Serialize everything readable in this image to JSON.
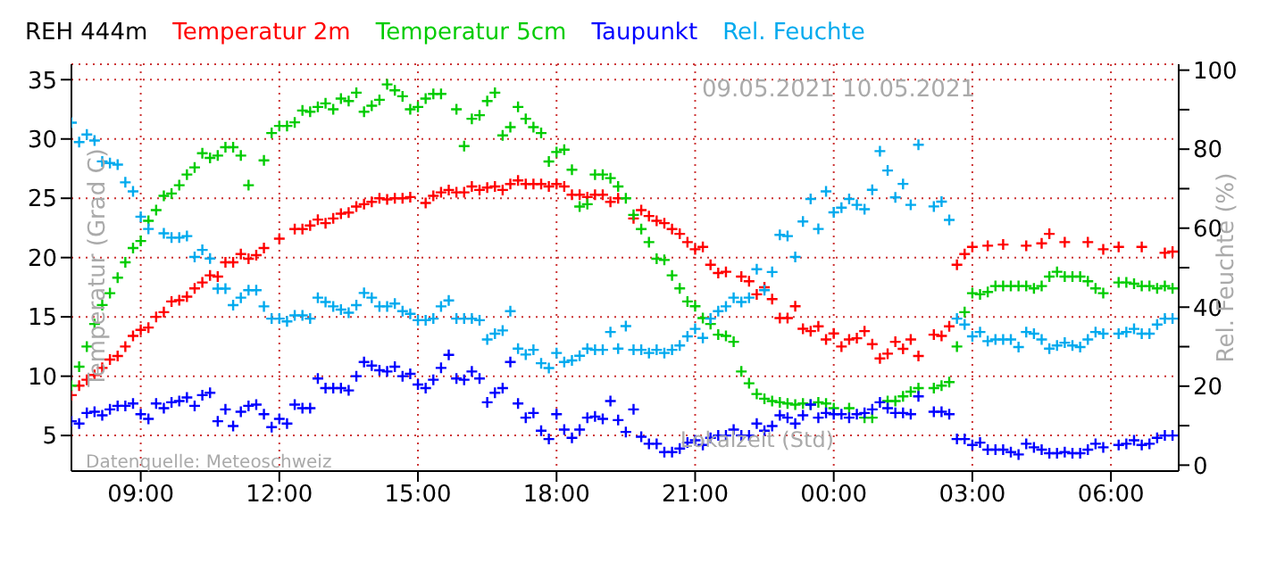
{
  "chart_data": {
    "type": "scatter",
    "title": "REH 444m",
    "ylabel": "Temperatur (Grad C)",
    "y2label": "Rel. Feuchte (%)",
    "xlabel": "Lokalzeit (Std)",
    "annotations": [
      "09.05.2021 10.05.2021",
      "Datenquelle: Meteoschweiz"
    ],
    "xlim": [
      "2021-05-09T07:30",
      "2021-05-10T07:28"
    ],
    "xticks": [
      {
        "value": "2021-05-09T09:00",
        "label": "09:00"
      },
      {
        "value": "2021-05-09T12:00",
        "label": "12:00"
      },
      {
        "value": "2021-05-09T15:00",
        "label": "15:00"
      },
      {
        "value": "2021-05-09T18:00",
        "label": "18:00"
      },
      {
        "value": "2021-05-09T21:00",
        "label": "21:00"
      },
      {
        "value": "2021-05-10T00:00",
        "label": "00:00"
      },
      {
        "value": "2021-05-10T03:00",
        "label": "03:00"
      },
      {
        "value": "2021-05-10T06:00",
        "label": "06:00"
      }
    ],
    "ylim": [
      2,
      36.3
    ],
    "yticks": [
      5,
      10,
      15,
      20,
      25,
      30,
      35
    ],
    "y2lim": [
      -1.5,
      101.5
    ],
    "y2ticks": [
      0,
      {
        "value": 10,
        "label": null
      },
      20,
      {
        "value": 30,
        "label": null
      },
      40,
      {
        "value": 50,
        "label": null
      },
      60,
      {
        "value": 70,
        "label": null
      },
      80,
      {
        "value": 90,
        "label": null
      },
      100
    ],
    "grid": true,
    "legend": "top",
    "marker": "cross",
    "series": [
      {
        "name": "Temperatur 2m",
        "color": "#ff0000",
        "x": [
          "2021-05-09T07:30",
          "2021-05-09T07:40",
          "2021-05-09T07:50",
          "2021-05-09T08:00",
          "2021-05-09T08:10",
          "2021-05-09T08:20",
          "2021-05-09T08:30",
          "2021-05-09T08:40",
          "2021-05-09T08:50",
          "2021-05-09T09:00",
          "2021-05-09T09:10",
          "2021-05-09T09:20",
          "2021-05-09T09:30",
          "2021-05-09T09:40",
          "2021-05-09T09:50",
          "2021-05-09T10:00",
          "2021-05-09T10:10",
          "2021-05-09T10:20",
          "2021-05-09T10:30",
          "2021-05-09T10:40",
          "2021-05-09T10:50",
          "2021-05-09T11:00",
          "2021-05-09T11:10",
          "2021-05-09T11:20",
          "2021-05-09T11:30",
          "2021-05-09T11:40",
          "2021-05-09T12:00",
          "2021-05-09T12:20",
          "2021-05-09T12:30",
          "2021-05-09T12:40",
          "2021-05-09T12:50",
          "2021-05-09T13:00",
          "2021-05-09T13:10",
          "2021-05-09T13:20",
          "2021-05-09T13:30",
          "2021-05-09T13:40",
          "2021-05-09T13:50",
          "2021-05-09T14:00",
          "2021-05-09T14:10",
          "2021-05-09T14:20",
          "2021-05-09T14:30",
          "2021-05-09T14:40",
          "2021-05-09T14:50",
          "2021-05-09T15:10",
          "2021-05-09T15:20",
          "2021-05-09T15:30",
          "2021-05-09T15:40",
          "2021-05-09T15:50",
          "2021-05-09T16:00",
          "2021-05-09T16:10",
          "2021-05-09T16:20",
          "2021-05-09T16:30",
          "2021-05-09T16:40",
          "2021-05-09T16:50",
          "2021-05-09T17:00",
          "2021-05-09T17:10",
          "2021-05-09T17:20",
          "2021-05-09T17:30",
          "2021-05-09T17:40",
          "2021-05-09T17:50",
          "2021-05-09T18:00",
          "2021-05-09T18:10",
          "2021-05-09T18:20",
          "2021-05-09T18:30",
          "2021-05-09T18:40",
          "2021-05-09T18:50",
          "2021-05-09T19:00",
          "2021-05-09T19:10",
          "2021-05-09T19:20",
          "2021-05-09T19:40",
          "2021-05-09T19:50",
          "2021-05-09T20:00",
          "2021-05-09T20:10",
          "2021-05-09T20:20",
          "2021-05-09T20:30",
          "2021-05-09T20:40",
          "2021-05-09T20:50",
          "2021-05-09T21:00",
          "2021-05-09T21:10",
          "2021-05-09T21:20",
          "2021-05-09T21:30",
          "2021-05-09T21:40",
          "2021-05-09T22:00",
          "2021-05-09T22:10",
          "2021-05-09T22:20",
          "2021-05-09T22:30",
          "2021-05-09T22:40",
          "2021-05-09T22:50",
          "2021-05-09T23:00",
          "2021-05-09T23:10",
          "2021-05-09T23:20",
          "2021-05-09T23:30",
          "2021-05-09T23:40",
          "2021-05-09T23:50",
          "2021-05-10T00:00",
          "2021-05-10T00:10",
          "2021-05-10T00:20",
          "2021-05-10T00:30",
          "2021-05-10T00:40",
          "2021-05-10T00:50",
          "2021-05-10T01:00",
          "2021-05-10T01:10",
          "2021-05-10T01:20",
          "2021-05-10T01:30",
          "2021-05-10T01:40",
          "2021-05-10T01:50",
          "2021-05-10T02:10",
          "2021-05-10T02:20",
          "2021-05-10T02:30",
          "2021-05-10T02:40",
          "2021-05-10T02:50",
          "2021-05-10T03:00",
          "2021-05-10T03:20",
          "2021-05-10T03:40",
          "2021-05-10T04:10",
          "2021-05-10T04:30",
          "2021-05-10T04:40",
          "2021-05-10T05:00",
          "2021-05-10T05:30",
          "2021-05-10T05:50",
          "2021-05-10T06:10",
          "2021-05-10T06:40",
          "2021-05-10T07:10",
          "2021-05-10T07:20"
        ],
        "values": [
          8.4,
          9.2,
          9.7,
          10.1,
          10.7,
          11.4,
          11.7,
          12.5,
          13.4,
          13.9,
          14.1,
          15.0,
          15.4,
          16.3,
          16.4,
          16.7,
          17.4,
          17.9,
          18.5,
          18.4,
          19.6,
          19.6,
          20.3,
          19.9,
          20.2,
          20.8,
          21.6,
          22.4,
          22.4,
          22.7,
          23.2,
          22.9,
          23.3,
          23.7,
          23.8,
          24.3,
          24.5,
          24.7,
          25.0,
          24.9,
          25.0,
          25.0,
          25.1,
          24.6,
          25.2,
          25.5,
          25.7,
          25.5,
          25.5,
          26.0,
          25.7,
          25.9,
          26.0,
          25.7,
          26.2,
          26.5,
          26.2,
          26.2,
          26.2,
          26.0,
          26.2,
          26.0,
          25.3,
          25.3,
          25.1,
          25.3,
          25.3,
          24.7,
          25.0,
          23.3,
          24.0,
          23.5,
          23.1,
          22.9,
          22.4,
          22.0,
          21.3,
          20.7,
          20.9,
          19.4,
          18.7,
          18.8,
          18.4,
          18.0,
          16.9,
          17.5,
          16.5,
          14.9,
          14.9,
          15.9,
          14.0,
          13.8,
          14.2,
          13.1,
          13.6,
          12.5,
          13.1,
          13.2,
          13.8,
          12.7,
          11.5,
          11.9,
          12.9,
          12.3,
          13.1,
          11.7,
          13.5,
          13.4,
          14.2,
          19.4,
          20.3,
          20.9,
          21.0,
          21.1,
          21.0,
          21.2,
          22.0,
          21.3,
          21.3,
          20.7,
          20.9,
          20.9,
          20.4,
          20.5
        ]
      },
      {
        "name": "Temperatur 5cm",
        "color": "#00cc00",
        "x": [
          "2021-05-09T07:30",
          "2021-05-09T07:40",
          "2021-05-09T07:50",
          "2021-05-09T08:00",
          "2021-05-09T08:10",
          "2021-05-09T08:20",
          "2021-05-09T08:30",
          "2021-05-09T08:40",
          "2021-05-09T08:50",
          "2021-05-09T09:00",
          "2021-05-09T09:10",
          "2021-05-09T09:20",
          "2021-05-09T09:30",
          "2021-05-09T09:40",
          "2021-05-09T09:50",
          "2021-05-09T10:00",
          "2021-05-09T10:10",
          "2021-05-09T10:20",
          "2021-05-09T10:30",
          "2021-05-09T10:40",
          "2021-05-09T10:50",
          "2021-05-09T11:00",
          "2021-05-09T11:10",
          "2021-05-09T11:20",
          "2021-05-09T11:40",
          "2021-05-09T11:50",
          "2021-05-09T12:00",
          "2021-05-09T12:10",
          "2021-05-09T12:20",
          "2021-05-09T12:30",
          "2021-05-09T12:40",
          "2021-05-09T12:50",
          "2021-05-09T13:00",
          "2021-05-09T13:10",
          "2021-05-09T13:20",
          "2021-05-09T13:30",
          "2021-05-09T13:40",
          "2021-05-09T13:50",
          "2021-05-09T14:00",
          "2021-05-09T14:10",
          "2021-05-09T14:20",
          "2021-05-09T14:30",
          "2021-05-09T14:40",
          "2021-05-09T14:50",
          "2021-05-09T15:00",
          "2021-05-09T15:10",
          "2021-05-09T15:20",
          "2021-05-09T15:30",
          "2021-05-09T15:50",
          "2021-05-09T16:00",
          "2021-05-09T16:10",
          "2021-05-09T16:20",
          "2021-05-09T16:30",
          "2021-05-09T16:40",
          "2021-05-09T16:50",
          "2021-05-09T17:00",
          "2021-05-09T17:10",
          "2021-05-09T17:20",
          "2021-05-09T17:30",
          "2021-05-09T17:40",
          "2021-05-09T17:50",
          "2021-05-09T18:00",
          "2021-05-09T18:10",
          "2021-05-09T18:20",
          "2021-05-09T18:30",
          "2021-05-09T18:40",
          "2021-05-09T18:50",
          "2021-05-09T19:00",
          "2021-05-09T19:10",
          "2021-05-09T19:20",
          "2021-05-09T19:30",
          "2021-05-09T19:40",
          "2021-05-09T19:50",
          "2021-05-09T20:00",
          "2021-05-09T20:10",
          "2021-05-09T20:20",
          "2021-05-09T20:30",
          "2021-05-09T20:40",
          "2021-05-09T20:50",
          "2021-05-09T21:00",
          "2021-05-09T21:10",
          "2021-05-09T21:20",
          "2021-05-09T21:30",
          "2021-05-09T21:40",
          "2021-05-09T21:50",
          "2021-05-09T22:00",
          "2021-05-09T22:10",
          "2021-05-09T22:20",
          "2021-05-09T22:30",
          "2021-05-09T22:40",
          "2021-05-09T22:50",
          "2021-05-09T23:00",
          "2021-05-09T23:10",
          "2021-05-09T23:20",
          "2021-05-09T23:30",
          "2021-05-09T23:40",
          "2021-05-09T23:50",
          "2021-05-10T00:00",
          "2021-05-10T00:20",
          "2021-05-10T00:40",
          "2021-05-10T00:50",
          "2021-05-10T01:10",
          "2021-05-10T01:20",
          "2021-05-10T01:30",
          "2021-05-10T01:40",
          "2021-05-10T01:50",
          "2021-05-10T02:10",
          "2021-05-10T02:20",
          "2021-05-10T02:30",
          "2021-05-10T02:40",
          "2021-05-10T02:50",
          "2021-05-10T03:00",
          "2021-05-10T03:10",
          "2021-05-10T03:20",
          "2021-05-10T03:30",
          "2021-05-10T03:40",
          "2021-05-10T03:50",
          "2021-05-10T04:00",
          "2021-05-10T04:10",
          "2021-05-10T04:20",
          "2021-05-10T04:30",
          "2021-05-10T04:40",
          "2021-05-10T04:50",
          "2021-05-10T05:00",
          "2021-05-10T05:10",
          "2021-05-10T05:20",
          "2021-05-10T05:30",
          "2021-05-10T05:40",
          "2021-05-10T05:50",
          "2021-05-10T06:10",
          "2021-05-10T06:20",
          "2021-05-10T06:30",
          "2021-05-10T06:40",
          "2021-05-10T06:50",
          "2021-05-10T07:00",
          "2021-05-10T07:10",
          "2021-05-10T07:20"
        ],
        "values": [
          9.2,
          10.8,
          12.5,
          14.4,
          16.0,
          17.0,
          18.3,
          19.6,
          20.8,
          21.4,
          23.1,
          24.0,
          25.2,
          25.4,
          26.1,
          27.0,
          27.6,
          28.8,
          28.4,
          28.6,
          29.3,
          29.3,
          28.6,
          26.1,
          28.2,
          30.5,
          31.1,
          31.1,
          31.4,
          32.4,
          32.3,
          32.7,
          33.0,
          32.5,
          33.4,
          33.2,
          33.9,
          32.3,
          32.8,
          33.3,
          34.6,
          34.1,
          33.6,
          32.5,
          32.7,
          33.4,
          33.8,
          33.8,
          32.5,
          29.4,
          31.7,
          32.0,
          33.2,
          33.9,
          30.3,
          31.0,
          32.7,
          31.7,
          31.0,
          30.5,
          28.1,
          28.9,
          29.1,
          27.4,
          24.3,
          24.5,
          27.0,
          27.0,
          26.7,
          26.0,
          25.0,
          23.6,
          22.4,
          21.3,
          19.9,
          19.8,
          18.5,
          17.4,
          16.3,
          15.9,
          14.9,
          14.4,
          13.5,
          13.4,
          12.9,
          10.4,
          9.4,
          8.5,
          8.1,
          7.9,
          7.8,
          7.7,
          7.6,
          7.7,
          7.6,
          7.8,
          7.7,
          7.3,
          7.3,
          6.5,
          6.5,
          7.9,
          7.9,
          8.3,
          8.7,
          9.0,
          9.0,
          9.2,
          9.5,
          12.5,
          15.4,
          17.0,
          16.9,
          17.1,
          17.6,
          17.6,
          17.6,
          17.6,
          17.6,
          17.4,
          17.6,
          18.4,
          18.8,
          18.4,
          18.4,
          18.4,
          18.0,
          17.4,
          17.0,
          17.9,
          17.9,
          17.8,
          17.6,
          17.6,
          17.4,
          17.6,
          17.4
        ]
      },
      {
        "name": "Taupunkt",
        "color": "#0000ff",
        "x": [
          "2021-05-09T07:30",
          "2021-05-09T07:40",
          "2021-05-09T07:50",
          "2021-05-09T08:00",
          "2021-05-09T08:10",
          "2021-05-09T08:20",
          "2021-05-09T08:30",
          "2021-05-09T08:40",
          "2021-05-09T08:50",
          "2021-05-09T09:00",
          "2021-05-09T09:10",
          "2021-05-09T09:20",
          "2021-05-09T09:30",
          "2021-05-09T09:40",
          "2021-05-09T09:50",
          "2021-05-09T10:00",
          "2021-05-09T10:10",
          "2021-05-09T10:20",
          "2021-05-09T10:30",
          "2021-05-09T10:40",
          "2021-05-09T10:50",
          "2021-05-09T11:00",
          "2021-05-09T11:10",
          "2021-05-09T11:20",
          "2021-05-09T11:30",
          "2021-05-09T11:40",
          "2021-05-09T11:50",
          "2021-05-09T12:00",
          "2021-05-09T12:10",
          "2021-05-09T12:20",
          "2021-05-09T12:30",
          "2021-05-09T12:40",
          "2021-05-09T12:50",
          "2021-05-09T13:00",
          "2021-05-09T13:10",
          "2021-05-09T13:20",
          "2021-05-09T13:30",
          "2021-05-09T13:40",
          "2021-05-09T13:50",
          "2021-05-09T14:00",
          "2021-05-09T14:10",
          "2021-05-09T14:20",
          "2021-05-09T14:30",
          "2021-05-09T14:40",
          "2021-05-09T14:50",
          "2021-05-09T15:00",
          "2021-05-09T15:10",
          "2021-05-09T15:20",
          "2021-05-09T15:30",
          "2021-05-09T15:40",
          "2021-05-09T15:50",
          "2021-05-09T16:00",
          "2021-05-09T16:10",
          "2021-05-09T16:20",
          "2021-05-09T16:30",
          "2021-05-09T16:40",
          "2021-05-09T16:50",
          "2021-05-09T17:00",
          "2021-05-09T17:10",
          "2021-05-09T17:20",
          "2021-05-09T17:30",
          "2021-05-09T17:40",
          "2021-05-09T17:50",
          "2021-05-09T18:00",
          "2021-05-09T18:10",
          "2021-05-09T18:20",
          "2021-05-09T18:30",
          "2021-05-09T18:40",
          "2021-05-09T18:50",
          "2021-05-09T19:00",
          "2021-05-09T19:10",
          "2021-05-09T19:20",
          "2021-05-09T19:30",
          "2021-05-09T19:40",
          "2021-05-09T19:50",
          "2021-05-09T20:00",
          "2021-05-09T20:10",
          "2021-05-09T20:20",
          "2021-05-09T20:30",
          "2021-05-09T20:40",
          "2021-05-09T20:50",
          "2021-05-09T21:00",
          "2021-05-09T21:10",
          "2021-05-09T21:20",
          "2021-05-09T21:30",
          "2021-05-09T21:40",
          "2021-05-09T21:50",
          "2021-05-09T22:00",
          "2021-05-09T22:10",
          "2021-05-09T22:20",
          "2021-05-09T22:30",
          "2021-05-09T22:40",
          "2021-05-09T22:50",
          "2021-05-09T23:00",
          "2021-05-09T23:10",
          "2021-05-09T23:20",
          "2021-05-09T23:30",
          "2021-05-09T23:40",
          "2021-05-09T23:50",
          "2021-05-10T00:00",
          "2021-05-10T00:10",
          "2021-05-10T00:20",
          "2021-05-10T00:30",
          "2021-05-10T00:40",
          "2021-05-10T00:50",
          "2021-05-10T01:00",
          "2021-05-10T01:10",
          "2021-05-10T01:20",
          "2021-05-10T01:30",
          "2021-05-10T01:40",
          "2021-05-10T01:50",
          "2021-05-10T02:10",
          "2021-05-10T02:20",
          "2021-05-10T02:30",
          "2021-05-10T02:40",
          "2021-05-10T02:50",
          "2021-05-10T03:00",
          "2021-05-10T03:10",
          "2021-05-10T03:20",
          "2021-05-10T03:30",
          "2021-05-10T03:40",
          "2021-05-10T03:50",
          "2021-05-10T04:00",
          "2021-05-10T04:10",
          "2021-05-10T04:20",
          "2021-05-10T04:30",
          "2021-05-10T04:40",
          "2021-05-10T04:50",
          "2021-05-10T05:00",
          "2021-05-10T05:10",
          "2021-05-10T05:20",
          "2021-05-10T05:30",
          "2021-05-10T05:40",
          "2021-05-10T05:50",
          "2021-05-10T06:10",
          "2021-05-10T06:20",
          "2021-05-10T06:30",
          "2021-05-10T06:40",
          "2021-05-10T06:50",
          "2021-05-10T07:00",
          "2021-05-10T07:10",
          "2021-05-10T07:20"
        ],
        "values": [
          6.2,
          6.0,
          6.9,
          7.0,
          6.7,
          7.2,
          7.5,
          7.5,
          7.7,
          6.8,
          6.4,
          7.7,
          7.3,
          7.8,
          7.9,
          8.2,
          7.5,
          8.4,
          8.6,
          6.2,
          7.2,
          5.8,
          7.0,
          7.5,
          7.6,
          6.8,
          5.7,
          6.4,
          6.0,
          7.6,
          7.3,
          7.3,
          9.8,
          9.0,
          9.0,
          9.0,
          8.8,
          10.0,
          11.2,
          10.9,
          10.5,
          10.4,
          10.8,
          10.0,
          10.2,
          9.3,
          9.0,
          9.7,
          10.7,
          11.8,
          9.8,
          9.7,
          10.4,
          9.8,
          7.8,
          8.6,
          9.0,
          11.2,
          7.7,
          6.5,
          6.9,
          5.4,
          4.7,
          6.8,
          5.5,
          4.8,
          5.5,
          6.5,
          6.6,
          6.4,
          7.9,
          6.3,
          5.3,
          7.2,
          4.9,
          4.3,
          4.3,
          3.6,
          3.6,
          3.9,
          4.4,
          4.6,
          4.2,
          4.8,
          5.0,
          5.0,
          5.5,
          5.0,
          5.0,
          6.0,
          5.4,
          5.8,
          6.7,
          6.5,
          6.0,
          6.7,
          7.6,
          6.5,
          6.9,
          6.8,
          6.8,
          6.5,
          6.8,
          6.9,
          7.2,
          7.8,
          7.3,
          6.9,
          6.9,
          6.8,
          8.3,
          7.0,
          7.0,
          6.8,
          4.7,
          4.7,
          4.2,
          4.4,
          3.8,
          3.8,
          3.8,
          3.6,
          3.4,
          4.3,
          4.0,
          3.8,
          3.5,
          3.5,
          3.6,
          3.5,
          3.5,
          3.8,
          4.3,
          4.0,
          4.2,
          4.3,
          4.6,
          4.2,
          4.3,
          4.8,
          5.0,
          5.0
        ]
      },
      {
        "name": "Rel. Feuchte",
        "color": "#00aaee",
        "axis": "y2",
        "x": [
          "2021-05-09T07:30",
          "2021-05-09T07:40",
          "2021-05-09T07:50",
          "2021-05-09T08:00",
          "2021-05-09T08:10",
          "2021-05-09T08:20",
          "2021-05-09T08:30",
          "2021-05-09T08:40",
          "2021-05-09T08:50",
          "2021-05-09T09:00",
          "2021-05-09T09:10",
          "2021-05-09T09:30",
          "2021-05-09T09:40",
          "2021-05-09T09:50",
          "2021-05-09T10:00",
          "2021-05-09T10:10",
          "2021-05-09T10:20",
          "2021-05-09T10:30",
          "2021-05-09T10:40",
          "2021-05-09T10:50",
          "2021-05-09T11:00",
          "2021-05-09T11:10",
          "2021-05-09T11:20",
          "2021-05-09T11:30",
          "2021-05-09T11:40",
          "2021-05-09T11:50",
          "2021-05-09T12:00",
          "2021-05-09T12:10",
          "2021-05-09T12:20",
          "2021-05-09T12:30",
          "2021-05-09T12:40",
          "2021-05-09T12:50",
          "2021-05-09T13:00",
          "2021-05-09T13:10",
          "2021-05-09T13:20",
          "2021-05-09T13:30",
          "2021-05-09T13:40",
          "2021-05-09T13:50",
          "2021-05-09T14:00",
          "2021-05-09T14:10",
          "2021-05-09T14:20",
          "2021-05-09T14:30",
          "2021-05-09T14:40",
          "2021-05-09T14:50",
          "2021-05-09T15:00",
          "2021-05-09T15:10",
          "2021-05-09T15:20",
          "2021-05-09T15:30",
          "2021-05-09T15:40",
          "2021-05-09T15:50",
          "2021-05-09T16:00",
          "2021-05-09T16:10",
          "2021-05-09T16:20",
          "2021-05-09T16:30",
          "2021-05-09T16:40",
          "2021-05-09T16:50",
          "2021-05-09T17:00",
          "2021-05-09T17:10",
          "2021-05-09T17:20",
          "2021-05-09T17:30",
          "2021-05-09T17:40",
          "2021-05-09T17:50",
          "2021-05-09T18:00",
          "2021-05-09T18:10",
          "2021-05-09T18:20",
          "2021-05-09T18:30",
          "2021-05-09T18:40",
          "2021-05-09T18:50",
          "2021-05-09T19:00",
          "2021-05-09T19:10",
          "2021-05-09T19:20",
          "2021-05-09T19:30",
          "2021-05-09T19:40",
          "2021-05-09T19:50",
          "2021-05-09T20:00",
          "2021-05-09T20:10",
          "2021-05-09T20:20",
          "2021-05-09T20:30",
          "2021-05-09T20:40",
          "2021-05-09T20:50",
          "2021-05-09T21:00",
          "2021-05-09T21:10",
          "2021-05-09T21:20",
          "2021-05-09T21:30",
          "2021-05-09T21:40",
          "2021-05-09T21:50",
          "2021-05-09T22:00",
          "2021-05-09T22:10",
          "2021-05-09T22:20",
          "2021-05-09T22:30",
          "2021-05-09T22:40",
          "2021-05-09T22:50",
          "2021-05-09T23:00",
          "2021-05-09T23:10",
          "2021-05-09T23:20",
          "2021-05-09T23:30",
          "2021-05-09T23:40",
          "2021-05-09T23:50",
          "2021-05-10T00:00",
          "2021-05-10T00:10",
          "2021-05-10T00:20",
          "2021-05-10T00:30",
          "2021-05-10T00:40",
          "2021-05-10T00:50",
          "2021-05-10T01:00",
          "2021-05-10T01:10",
          "2021-05-10T01:20",
          "2021-05-10T01:30",
          "2021-05-10T01:40",
          "2021-05-10T01:50",
          "2021-05-10T02:10",
          "2021-05-10T02:20",
          "2021-05-10T02:30",
          "2021-05-10T02:40",
          "2021-05-10T02:50",
          "2021-05-10T03:00",
          "2021-05-10T03:10",
          "2021-05-10T03:20",
          "2021-05-10T03:30",
          "2021-05-10T03:40",
          "2021-05-10T03:50",
          "2021-05-10T04:00",
          "2021-05-10T04:10",
          "2021-05-10T04:20",
          "2021-05-10T04:30",
          "2021-05-10T04:40",
          "2021-05-10T04:50",
          "2021-05-10T05:00",
          "2021-05-10T05:10",
          "2021-05-10T05:20",
          "2021-05-10T05:30",
          "2021-05-10T05:40",
          "2021-05-10T05:50",
          "2021-05-10T06:10",
          "2021-05-10T06:20",
          "2021-05-10T06:30",
          "2021-05-10T06:40",
          "2021-05-10T06:50",
          "2021-05-10T07:00",
          "2021-05-10T07:10",
          "2021-05-10T07:20"
        ],
        "values": [
          86.7,
          81.8,
          83.7,
          82.2,
          76.9,
          76.5,
          76.1,
          71.6,
          69.3,
          62.9,
          59.8,
          58.7,
          57.6,
          57.6,
          58.0,
          52.7,
          54.5,
          52.3,
          44.7,
          44.7,
          40.5,
          42.4,
          44.3,
          44.3,
          40.2,
          37.1,
          37.1,
          36.4,
          37.9,
          37.9,
          37.1,
          42.4,
          41.3,
          40.2,
          39.4,
          38.6,
          40.5,
          43.6,
          42.4,
          40.2,
          40.2,
          40.9,
          39.0,
          38.3,
          36.7,
          36.7,
          37.1,
          40.2,
          41.7,
          37.1,
          37.1,
          37.1,
          36.7,
          31.8,
          33.3,
          34.1,
          39.0,
          29.5,
          28.0,
          29.2,
          25.8,
          24.6,
          28.4,
          26.1,
          26.5,
          27.7,
          29.5,
          29.2,
          29.2,
          33.7,
          29.5,
          35.2,
          29.2,
          29.2,
          28.4,
          29.2,
          28.4,
          29.2,
          30.3,
          32.6,
          34.5,
          32.2,
          37.1,
          39.0,
          40.2,
          42.4,
          41.3,
          42.4,
          49.6,
          44.3,
          48.9,
          58.3,
          58.0,
          52.7,
          61.7,
          67.4,
          59.8,
          69.3,
          64.0,
          65.2,
          67.4,
          65.9,
          64.8,
          69.7,
          79.5,
          74.6,
          67.8,
          71.2,
          65.9,
          81.1,
          65.5,
          66.7,
          62.1,
          37.1,
          35.6,
          32.6,
          33.7,
          31.4,
          31.8,
          31.8,
          31.8,
          29.9,
          33.7,
          33.3,
          31.8,
          29.5,
          30.3,
          31.0,
          30.3,
          29.9,
          31.8,
          33.7,
          33.3,
          33.3,
          33.7,
          34.5,
          33.3,
          33.3,
          35.6,
          37.1,
          37.1
        ]
      }
    ]
  }
}
